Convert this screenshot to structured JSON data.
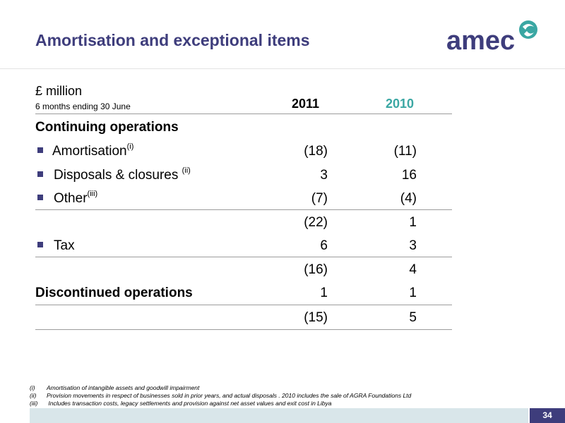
{
  "slide": {
    "title": "Amortisation and exceptional items",
    "logo_text": "amec",
    "page_number": "34"
  },
  "table": {
    "units": "£ million",
    "period": "6 months ending 30 June",
    "columns": [
      "2011",
      "2010"
    ],
    "rows": [
      {
        "label": "Continuing operations",
        "sup": "",
        "v2011": "",
        "v2010": ""
      },
      {
        "label": "Amortisation",
        "sup": "(i)",
        "v2011": "(18)",
        "v2010": "(11)"
      },
      {
        "label": "Disposals & closures ",
        "sup": "(ii)",
        "v2011": "3",
        "v2010": "16"
      },
      {
        "label": "Other",
        "sup": "(iii)",
        "v2011": "(7)",
        "v2010": "(4)"
      },
      {
        "label": "",
        "sup": "",
        "v2011": "(22)",
        "v2010": "1"
      },
      {
        "label": "Tax",
        "sup": "",
        "v2011": "6",
        "v2010": "3"
      },
      {
        "label": "",
        "sup": "",
        "v2011": "(16)",
        "v2010": "4"
      },
      {
        "label": "Discontinued operations",
        "sup": "",
        "v2011": "1",
        "v2010": "1"
      },
      {
        "label": "",
        "sup": "",
        "v2011": "(15)",
        "v2010": "5"
      }
    ]
  },
  "notes": [
    {
      "num": "(i)",
      "text": "Amortisation of intangible assets and goodwill impairment"
    },
    {
      "num": "(ii)",
      "text": "Provision movements in respect of businesses sold in prior years, and actual disposals .  2010 includes the sale of AGRA Foundations Ltd"
    },
    {
      "num": "(iii)",
      "text": " Includes transaction costs, legacy settlements and provision against net asset values and exit cost in Libya"
    }
  ],
  "colors": {
    "brand_purple": "#3e3d7c",
    "accent_teal": "#3aa7a3",
    "footer_bar": "#d9e6ea"
  }
}
